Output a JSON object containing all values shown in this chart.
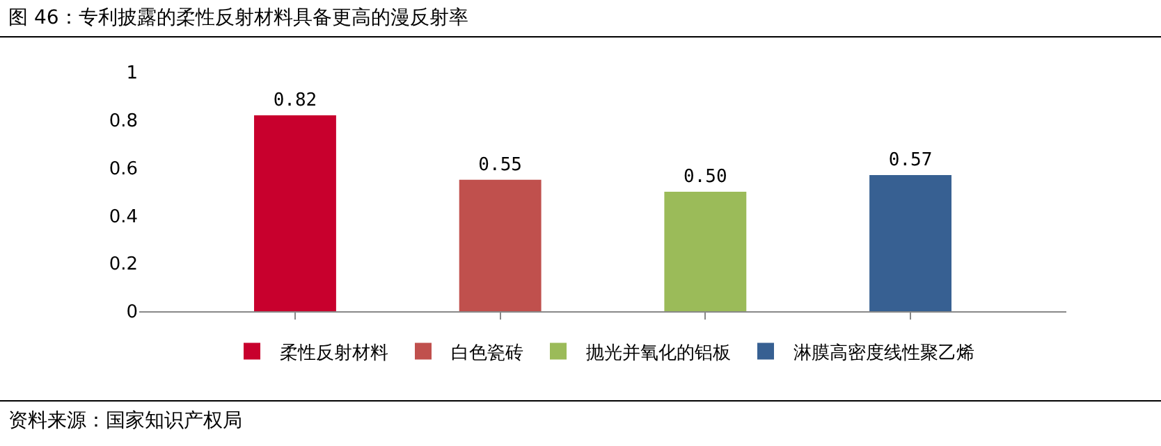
{
  "chart_data": {
    "type": "bar",
    "title": "图 46：专利披露的柔性反射材料具备更高的漫反射率",
    "categories": [
      null,
      null,
      null,
      null
    ],
    "series": [
      {
        "name": "柔性反射材料",
        "color": "#c8002d",
        "values": [
          0.82,
          null,
          null,
          null
        ],
        "value_labels": [
          "0.82",
          null,
          null,
          null
        ]
      },
      {
        "name": "白色瓷砖",
        "color": "#c0504d",
        "values": [
          null,
          0.55,
          null,
          null
        ],
        "value_labels": [
          null,
          "0.55",
          null,
          null
        ]
      },
      {
        "name": "抛光并氧化的铝板",
        "color": "#9bbb59",
        "values": [
          null,
          null,
          0.5,
          null
        ],
        "value_labels": [
          null,
          null,
          "0.50",
          null
        ]
      },
      {
        "name": "淋膜高密度线性聚乙烯",
        "color": "#376092",
        "values": [
          null,
          null,
          null,
          0.57
        ],
        "value_labels": [
          null,
          null,
          null,
          "0.57"
        ]
      }
    ],
    "ylim": [
      0,
      1
    ],
    "yticks": [
      0,
      0.2,
      0.4,
      0.6,
      0.8,
      1
    ],
    "grid": false,
    "legend": "bottom",
    "tick_labels": "y",
    "annotations": [
      "资料来源：国家知识产权局"
    ]
  }
}
